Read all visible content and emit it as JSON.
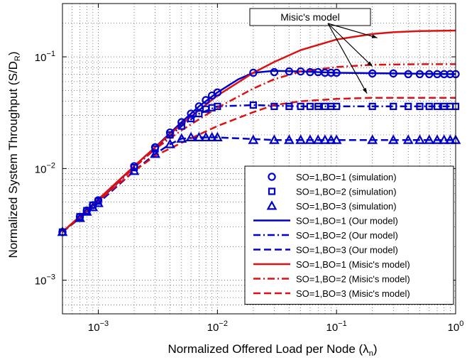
{
  "chart_data": {
    "type": "line",
    "x_scale": "log",
    "y_scale": "log",
    "xlim": [
      0.0005,
      1
    ],
    "ylim": [
      0.0005,
      0.3
    ],
    "grid": true,
    "legend_position": "bottom-right",
    "xlabel": "Normalized Offered Load per Node (λ",
    "xlabel_sub": "n",
    "xlabel_end": ")",
    "ylabel": "Normalized System Throughput (S/D",
    "ylabel_sub": "R",
    "ylabel_end": ")",
    "x_ticks": [
      {
        "value": 0.001,
        "base": "10",
        "exp": "−3"
      },
      {
        "value": 0.01,
        "base": "10",
        "exp": "−2"
      },
      {
        "value": 0.1,
        "base": "10",
        "exp": "−1"
      },
      {
        "value": 1,
        "base": "10",
        "exp": "0"
      }
    ],
    "y_ticks": [
      {
        "value": 0.001,
        "base": "10",
        "exp": "−3"
      },
      {
        "value": 0.01,
        "base": "10",
        "exp": "−2"
      },
      {
        "value": 0.1,
        "base": "10",
        "exp": "−1"
      }
    ],
    "annotation": {
      "text": "Misic's model",
      "points_to": [
        [
          0.22,
          0.148
        ],
        [
          0.2,
          0.082
        ],
        [
          0.18,
          0.047
        ]
      ],
      "anchor": [
        0.012,
        0.24
      ]
    },
    "series": [
      {
        "name": "SO=1,BO=1 (simulation)",
        "kind": "marker",
        "marker": "circle",
        "color": "#0000cc",
        "x": [
          0.0005,
          0.0007,
          0.0008,
          0.0009,
          0.001,
          0.002,
          0.003,
          0.004,
          0.005,
          0.006,
          0.007,
          0.008,
          0.009,
          0.01,
          0.02,
          0.03,
          0.04,
          0.05,
          0.06,
          0.07,
          0.08,
          0.09,
          0.1,
          0.2,
          0.3,
          0.4,
          0.5,
          0.6,
          0.7,
          0.8,
          0.9,
          1.0
        ],
        "y": [
          0.0027,
          0.0037,
          0.0042,
          0.0047,
          0.0052,
          0.0105,
          0.0155,
          0.021,
          0.026,
          0.031,
          0.036,
          0.041,
          0.045,
          0.048,
          0.072,
          0.073,
          0.074,
          0.074,
          0.073,
          0.073,
          0.072,
          0.072,
          0.072,
          0.071,
          0.071,
          0.07,
          0.07,
          0.07,
          0.07,
          0.07,
          0.07,
          0.07
        ]
      },
      {
        "name": "SO=1,BO=2 (simulation)",
        "kind": "marker",
        "marker": "square",
        "color": "#0000cc",
        "x": [
          0.0005,
          0.0007,
          0.0008,
          0.0009,
          0.001,
          0.002,
          0.003,
          0.004,
          0.005,
          0.006,
          0.007,
          0.008,
          0.009,
          0.01,
          0.02,
          0.03,
          0.04,
          0.05,
          0.06,
          0.07,
          0.08,
          0.09,
          0.1,
          0.2,
          0.3,
          0.4,
          0.5,
          0.6,
          0.7,
          0.8,
          0.9,
          1.0
        ],
        "y": [
          0.0027,
          0.0037,
          0.0042,
          0.0047,
          0.0051,
          0.0102,
          0.015,
          0.02,
          0.024,
          0.028,
          0.031,
          0.034,
          0.035,
          0.036,
          0.037,
          0.036,
          0.036,
          0.036,
          0.036,
          0.036,
          0.036,
          0.036,
          0.036,
          0.036,
          0.036,
          0.036,
          0.036,
          0.036,
          0.036,
          0.036,
          0.036,
          0.036
        ]
      },
      {
        "name": "SO=1,BO=3 (simulation)",
        "kind": "marker",
        "marker": "triangle",
        "color": "#0000cc",
        "x": [
          0.0005,
          0.0007,
          0.0008,
          0.0009,
          0.001,
          0.002,
          0.003,
          0.004,
          0.005,
          0.006,
          0.007,
          0.008,
          0.009,
          0.01,
          0.02,
          0.03,
          0.04,
          0.05,
          0.06,
          0.07,
          0.08,
          0.09,
          0.1,
          0.2,
          0.3,
          0.4,
          0.5,
          0.6,
          0.7,
          0.8,
          0.9,
          1.0
        ],
        "y": [
          0.0027,
          0.0036,
          0.0041,
          0.0045,
          0.0049,
          0.0095,
          0.0135,
          0.0165,
          0.0185,
          0.019,
          0.019,
          0.019,
          0.019,
          0.019,
          0.018,
          0.018,
          0.018,
          0.018,
          0.018,
          0.018,
          0.018,
          0.018,
          0.018,
          0.018,
          0.018,
          0.018,
          0.018,
          0.018,
          0.018,
          0.018,
          0.018,
          0.018
        ]
      },
      {
        "name": "SO=1,BO=1 (Our model)",
        "kind": "line",
        "dash": "solid",
        "color": "#0000cc",
        "x": [
          0.0005,
          0.001,
          0.002,
          0.003,
          0.005,
          0.007,
          0.01,
          0.015,
          0.02,
          0.03,
          0.05,
          0.1,
          0.3,
          1.0
        ],
        "y": [
          0.0027,
          0.0052,
          0.0105,
          0.0155,
          0.026,
          0.036,
          0.048,
          0.063,
          0.072,
          0.075,
          0.074,
          0.072,
          0.071,
          0.07
        ]
      },
      {
        "name": "SO=1,BO=2 (Our model)",
        "kind": "line",
        "dash": "dashdot",
        "color": "#0000cc",
        "x": [
          0.0005,
          0.001,
          0.002,
          0.003,
          0.005,
          0.007,
          0.01,
          0.02,
          0.05,
          0.1,
          1.0
        ],
        "y": [
          0.0027,
          0.0051,
          0.0102,
          0.015,
          0.024,
          0.031,
          0.036,
          0.037,
          0.036,
          0.036,
          0.036
        ]
      },
      {
        "name": "SO=1,BO=3 (Our model)",
        "kind": "line",
        "dash": "dashed",
        "color": "#0000cc",
        "x": [
          0.0005,
          0.001,
          0.002,
          0.003,
          0.004,
          0.005,
          0.007,
          0.01,
          0.03,
          0.1,
          1.0
        ],
        "y": [
          0.0027,
          0.0049,
          0.0095,
          0.0135,
          0.0165,
          0.0185,
          0.019,
          0.019,
          0.018,
          0.018,
          0.018
        ]
      },
      {
        "name": "SO=1,BO=1 (Misic's model)",
        "kind": "line",
        "dash": "solid",
        "color": "#dd1111",
        "x": [
          0.0005,
          0.001,
          0.002,
          0.003,
          0.005,
          0.01,
          0.02,
          0.03,
          0.05,
          0.1,
          0.2,
          0.3,
          0.5,
          1.0
        ],
        "y": [
          0.0027,
          0.0053,
          0.0105,
          0.0155,
          0.025,
          0.045,
          0.072,
          0.09,
          0.115,
          0.143,
          0.16,
          0.166,
          0.17,
          0.172
        ]
      },
      {
        "name": "SO=1,BO=2 (Misic's model)",
        "kind": "line",
        "dash": "dashdot",
        "color": "#dd1111",
        "x": [
          0.0005,
          0.001,
          0.002,
          0.003,
          0.005,
          0.01,
          0.02,
          0.03,
          0.05,
          0.1,
          0.2,
          0.5,
          1.0
        ],
        "y": [
          0.0027,
          0.0052,
          0.0102,
          0.015,
          0.022,
          0.035,
          0.052,
          0.063,
          0.074,
          0.081,
          0.085,
          0.086,
          0.086
        ]
      },
      {
        "name": "SO=1,BO=3 (Misic's model)",
        "kind": "line",
        "dash": "dashed",
        "color": "#dd1111",
        "x": [
          0.0005,
          0.001,
          0.002,
          0.003,
          0.005,
          0.01,
          0.02,
          0.03,
          0.05,
          0.1,
          0.2,
          0.5,
          1.0
        ],
        "y": [
          0.0027,
          0.0051,
          0.0095,
          0.013,
          0.017,
          0.024,
          0.032,
          0.037,
          0.04,
          0.042,
          0.043,
          0.043,
          0.043
        ]
      }
    ]
  }
}
